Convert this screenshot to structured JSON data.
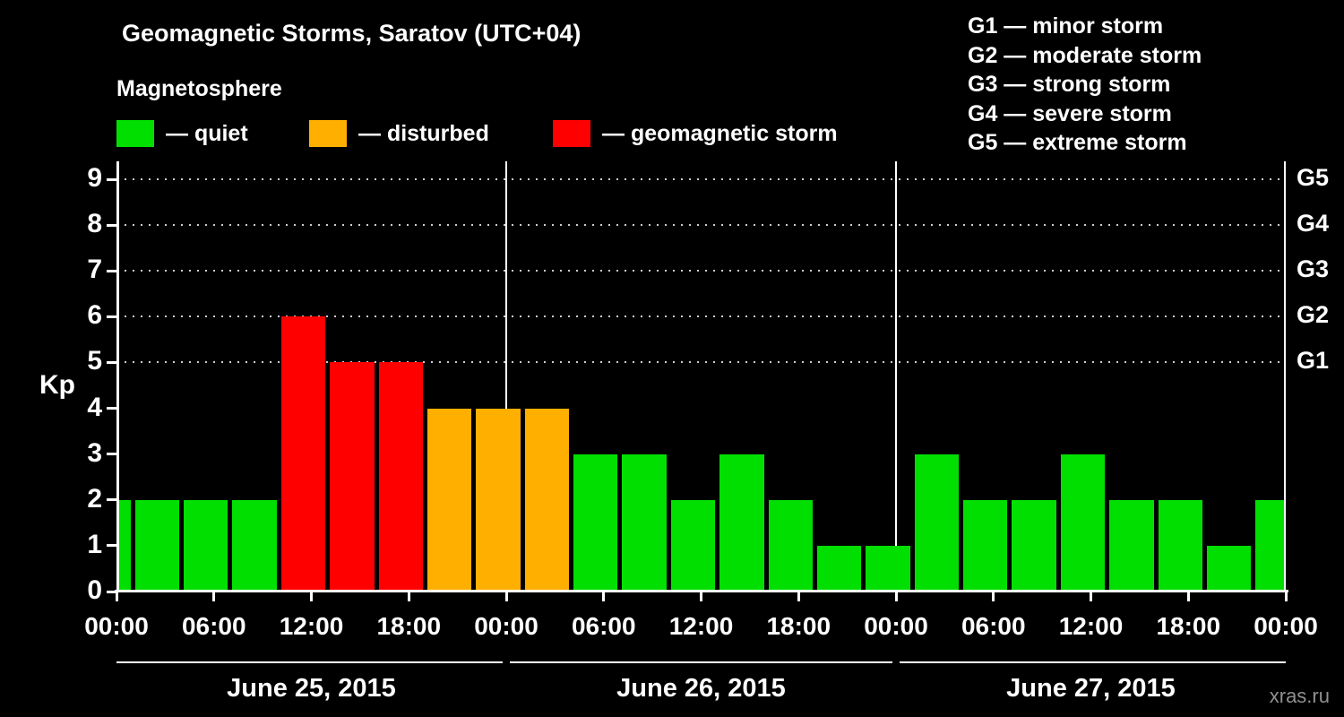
{
  "title": "Geomagnetic Storms, Saratov (UTC+04)",
  "subtitle": "Magnetosphere",
  "kp_axis_label": "Kp",
  "watermark": "xras.ru",
  "colors": {
    "quiet": "#00DF00",
    "disturbed": "#FFAF00",
    "storm": "#FF0000",
    "background": "#000000",
    "axis": "#FFFFFF"
  },
  "legend": [
    {
      "key": "quiet",
      "label": "— quiet"
    },
    {
      "key": "disturbed",
      "label": "— disturbed"
    },
    {
      "key": "storm",
      "label": "— geomagnetic storm"
    }
  ],
  "g_legend": [
    {
      "label": "G1 — minor storm"
    },
    {
      "label": "G2 — moderate storm"
    },
    {
      "label": "G3 — strong storm"
    },
    {
      "label": "G4 — severe storm"
    },
    {
      "label": "G5 — extreme storm"
    }
  ],
  "chart_data": {
    "type": "bar",
    "title": "Geomagnetic Storms, Saratov (UTC+04)",
    "ylabel": "Kp",
    "ylim": [
      0,
      9
    ],
    "y_ticks": [
      0,
      1,
      2,
      3,
      4,
      5,
      6,
      7,
      8,
      9
    ],
    "hours_total": 72,
    "x_tick_step_hours": 6,
    "x_tick_labels": [
      "00:00",
      "06:00",
      "12:00",
      "18:00",
      "00:00",
      "06:00",
      "12:00",
      "18:00",
      "00:00",
      "06:00",
      "12:00",
      "18:00",
      "00:00"
    ],
    "g_levels": [
      {
        "kp": 5,
        "label": "G1"
      },
      {
        "kp": 6,
        "label": "G2"
      },
      {
        "kp": 7,
        "label": "G3"
      },
      {
        "kp": 8,
        "label": "G4"
      },
      {
        "kp": 9,
        "label": "G5"
      }
    ],
    "days": [
      {
        "label": "June 25, 2015",
        "start_hour": 0,
        "end_hour": 24
      },
      {
        "label": "June 26, 2015",
        "start_hour": 24,
        "end_hour": 48
      },
      {
        "label": "June 27, 2015",
        "start_hour": 48,
        "end_hour": 72
      }
    ],
    "bars": [
      {
        "start": 0,
        "end": 1,
        "kp": 2,
        "level": "quiet"
      },
      {
        "start": 1,
        "end": 4,
        "kp": 2,
        "level": "quiet"
      },
      {
        "start": 4,
        "end": 7,
        "kp": 2,
        "level": "quiet"
      },
      {
        "start": 7,
        "end": 10,
        "kp": 2,
        "level": "quiet"
      },
      {
        "start": 10,
        "end": 13,
        "kp": 6,
        "level": "storm"
      },
      {
        "start": 13,
        "end": 16,
        "kp": 5,
        "level": "storm"
      },
      {
        "start": 16,
        "end": 19,
        "kp": 5,
        "level": "storm"
      },
      {
        "start": 19,
        "end": 22,
        "kp": 4,
        "level": "disturbed"
      },
      {
        "start": 22,
        "end": 25,
        "kp": 4,
        "level": "disturbed"
      },
      {
        "start": 25,
        "end": 28,
        "kp": 4,
        "level": "disturbed"
      },
      {
        "start": 28,
        "end": 31,
        "kp": 3,
        "level": "quiet"
      },
      {
        "start": 31,
        "end": 34,
        "kp": 3,
        "level": "quiet"
      },
      {
        "start": 34,
        "end": 37,
        "kp": 2,
        "level": "quiet"
      },
      {
        "start": 37,
        "end": 40,
        "kp": 3,
        "level": "quiet"
      },
      {
        "start": 40,
        "end": 43,
        "kp": 2,
        "level": "quiet"
      },
      {
        "start": 43,
        "end": 46,
        "kp": 1,
        "level": "quiet"
      },
      {
        "start": 46,
        "end": 49,
        "kp": 1,
        "level": "quiet"
      },
      {
        "start": 49,
        "end": 52,
        "kp": 3,
        "level": "quiet"
      },
      {
        "start": 52,
        "end": 55,
        "kp": 2,
        "level": "quiet"
      },
      {
        "start": 55,
        "end": 58,
        "kp": 2,
        "level": "quiet"
      },
      {
        "start": 58,
        "end": 61,
        "kp": 3,
        "level": "quiet"
      },
      {
        "start": 61,
        "end": 64,
        "kp": 2,
        "level": "quiet"
      },
      {
        "start": 64,
        "end": 67,
        "kp": 2,
        "level": "quiet"
      },
      {
        "start": 67,
        "end": 70,
        "kp": 1,
        "level": "quiet"
      },
      {
        "start": 70,
        "end": 72,
        "kp": 2,
        "level": "quiet"
      }
    ]
  }
}
